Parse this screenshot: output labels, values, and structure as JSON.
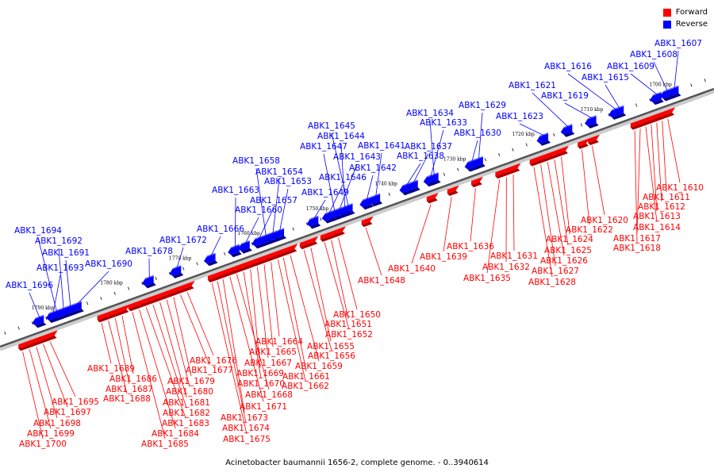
{
  "legend": {
    "forward": {
      "label": "Forward",
      "color": "#ff0000"
    },
    "reverse": {
      "label": "Reverse",
      "color": "#0000ff"
    }
  },
  "caption": "Acinetobacter baumannii 1656-2, complete genome. - 0..3940614",
  "axis": {
    "start_kbp": 1700,
    "end_kbp": 1790,
    "tick_labels": [
      "1700 kbp",
      "1710 kbp",
      "1720 kbp",
      "1730 kbp",
      "1740 kbp",
      "1750 kbp",
      "1760 kbp",
      "1770 kbp",
      "1780 kbp",
      "1790 kbp"
    ],
    "tick_values": [
      1700,
      1710,
      1720,
      1730,
      1740,
      1750,
      1760,
      1770,
      1780,
      1790
    ]
  },
  "reverse_genes": [
    {
      "label": "ABK1_1607",
      "pos": 1698.0
    },
    {
      "label": "ABK1_1608",
      "pos": 1699.0
    },
    {
      "label": "ABK1_1609",
      "pos": 1700.5
    },
    {
      "label": "ABK1_1615",
      "pos": 1706.0
    },
    {
      "label": "ABK1_1616",
      "pos": 1706.5
    },
    {
      "label": "ABK1_1619",
      "pos": 1710.0
    },
    {
      "label": "ABK1_1621",
      "pos": 1713.5
    },
    {
      "label": "ABK1_1623",
      "pos": 1717.0
    },
    {
      "label": "ABK1_1629",
      "pos": 1726.5
    },
    {
      "label": "ABK1_1630",
      "pos": 1727.5
    },
    {
      "label": "ABK1_1634",
      "pos": 1733.0
    },
    {
      "label": "ABK1_1633",
      "pos": 1733.5
    },
    {
      "label": "ABK1_1637",
      "pos": 1736.0
    },
    {
      "label": "ABK1_1638",
      "pos": 1737.0
    },
    {
      "label": "ABK1_1641",
      "pos": 1741.5
    },
    {
      "label": "ABK1_1642",
      "pos": 1742.8
    },
    {
      "label": "ABK1_1645",
      "pos": 1745.5
    },
    {
      "label": "ABK1_1644",
      "pos": 1746.0
    },
    {
      "label": "ABK1_1643",
      "pos": 1746.8
    },
    {
      "label": "ABK1_1647",
      "pos": 1747.5
    },
    {
      "label": "ABK1_1646",
      "pos": 1748.3
    },
    {
      "label": "ABK1_1649",
      "pos": 1750.5
    },
    {
      "label": "ABK1_1653",
      "pos": 1755.5
    },
    {
      "label": "ABK1_1654",
      "pos": 1756.5
    },
    {
      "label": "ABK1_1658",
      "pos": 1757.5
    },
    {
      "label": "ABK1_1657",
      "pos": 1758.5
    },
    {
      "label": "ABK1_1660",
      "pos": 1760.5
    },
    {
      "label": "ABK1_1663",
      "pos": 1762.0
    },
    {
      "label": "ABK1_1666",
      "pos": 1765.5
    },
    {
      "label": "ABK1_1672",
      "pos": 1770.5
    },
    {
      "label": "ABK1_1678",
      "pos": 1774.5
    },
    {
      "label": "ABK1_1690",
      "pos": 1785.0
    },
    {
      "label": "ABK1_1691",
      "pos": 1786.0
    },
    {
      "label": "ABK1_1692",
      "pos": 1787.0
    },
    {
      "label": "ABK1_1694",
      "pos": 1788.0
    },
    {
      "label": "ABK1_1693",
      "pos": 1788.5
    },
    {
      "label": "ABK1_1696",
      "pos": 1790.5
    }
  ],
  "forward_genes": [
    {
      "label": "ABK1_1610",
      "pos": 1701.0
    },
    {
      "label": "ABK1_1611",
      "pos": 1701.8
    },
    {
      "label": "ABK1_1612",
      "pos": 1702.6
    },
    {
      "label": "ABK1_1613",
      "pos": 1703.4
    },
    {
      "label": "ABK1_1614",
      "pos": 1704.2
    },
    {
      "label": "ABK1_1617",
      "pos": 1705.0
    },
    {
      "label": "ABK1_1618",
      "pos": 1705.8
    },
    {
      "label": "ABK1_1620",
      "pos": 1712.0
    },
    {
      "label": "ABK1_1622",
      "pos": 1713.5
    },
    {
      "label": "ABK1_1624",
      "pos": 1716.5
    },
    {
      "label": "ABK1_1625",
      "pos": 1717.5
    },
    {
      "label": "ABK1_1626",
      "pos": 1718.5
    },
    {
      "label": "ABK1_1627",
      "pos": 1719.5
    },
    {
      "label": "ABK1_1628",
      "pos": 1720.5
    },
    {
      "label": "ABK1_1631",
      "pos": 1723.5
    },
    {
      "label": "ABK1_1632",
      "pos": 1724.5
    },
    {
      "label": "ABK1_1635",
      "pos": 1725.5
    },
    {
      "label": "ABK1_1636",
      "pos": 1729.0
    },
    {
      "label": "ABK1_1639",
      "pos": 1732.5
    },
    {
      "label": "ABK1_1640",
      "pos": 1735.5
    },
    {
      "label": "ABK1_1648",
      "pos": 1745.0
    },
    {
      "label": "ABK1_1650",
      "pos": 1749.0
    },
    {
      "label": "ABK1_1651",
      "pos": 1750.0
    },
    {
      "label": "ABK1_1652",
      "pos": 1751.0
    },
    {
      "label": "ABK1_1655",
      "pos": 1753.0
    },
    {
      "label": "ABK1_1656",
      "pos": 1754.0
    },
    {
      "label": "ABK1_1659",
      "pos": 1756.0
    },
    {
      "label": "ABK1_1661",
      "pos": 1757.0
    },
    {
      "label": "ABK1_1662",
      "pos": 1757.8
    },
    {
      "label": "ABK1_1664",
      "pos": 1758.8
    },
    {
      "label": "ABK1_1665",
      "pos": 1759.8
    },
    {
      "label": "ABK1_1667",
      "pos": 1760.8
    },
    {
      "label": "ABK1_1669",
      "pos": 1761.8
    },
    {
      "label": "ABK1_1670",
      "pos": 1762.8
    },
    {
      "label": "ABK1_1668",
      "pos": 1763.8
    },
    {
      "label": "ABK1_1671",
      "pos": 1764.8
    },
    {
      "label": "ABK1_1673",
      "pos": 1765.8
    },
    {
      "label": "ABK1_1674",
      "pos": 1766.6
    },
    {
      "label": "ABK1_1675",
      "pos": 1767.4
    },
    {
      "label": "ABK1_1676",
      "pos": 1771.0
    },
    {
      "label": "ABK1_1677",
      "pos": 1772.0
    },
    {
      "label": "ABK1_1679",
      "pos": 1773.0
    },
    {
      "label": "ABK1_1680",
      "pos": 1774.0
    },
    {
      "label": "ABK1_1681",
      "pos": 1775.0
    },
    {
      "label": "ABK1_1682",
      "pos": 1776.0
    },
    {
      "label": "ABK1_1683",
      "pos": 1777.0
    },
    {
      "label": "ABK1_1684",
      "pos": 1778.0
    },
    {
      "label": "ABK1_1685",
      "pos": 1779.0
    },
    {
      "label": "ABK1_1686",
      "pos": 1780.5
    },
    {
      "label": "ABK1_1687",
      "pos": 1781.5
    },
    {
      "label": "ABK1_1688",
      "pos": 1782.5
    },
    {
      "label": "ABK1_1689",
      "pos": 1783.5
    },
    {
      "label": "ABK1_1695",
      "pos": 1791.0
    },
    {
      "label": "ABK1_1697",
      "pos": 1792.0
    },
    {
      "label": "ABK1_1698",
      "pos": 1793.0
    },
    {
      "label": "ABK1_1699",
      "pos": 1794.0
    },
    {
      "label": "ABK1_1700",
      "pos": 1795.0
    }
  ]
}
